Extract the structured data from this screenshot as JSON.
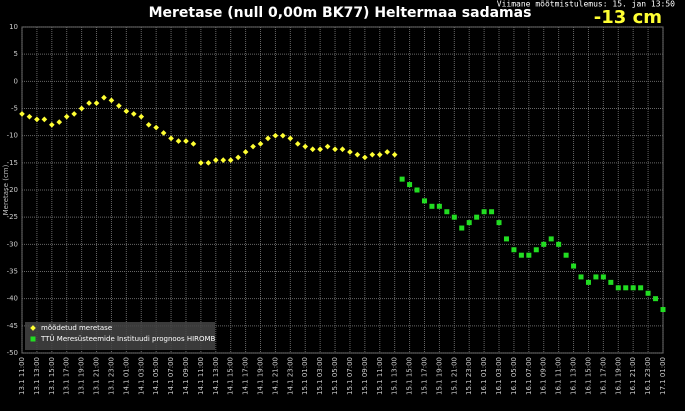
{
  "chart_data": {
    "type": "scatter",
    "title": "Meretase (null 0,00m BK77) Heltermaa sadamas",
    "subtitle": "Viimane mõõtmistulemus: 15. jan 13:50",
    "current_reading": "-13 cm",
    "y_label": "Meretase (cm)",
    "categories": [
      "13.1 11:00",
      null,
      "13.1 13:00",
      null,
      "13.1 15:00",
      null,
      "13.1 17:00",
      null,
      "13.1 19:00",
      null,
      "13.1 21:00",
      null,
      "13.1 23:00",
      null,
      "14.1 01:00",
      null,
      "14.1 03:00",
      null,
      "14.1 05:00",
      null,
      "14.1 07:00",
      null,
      "14.1 09:00",
      null,
      "14.1 11:00",
      null,
      "14.1 13:00",
      null,
      "14.1 15:00",
      null,
      "14.1 17:00",
      null,
      "14.1 19:00",
      null,
      "14.1 21:00",
      null,
      "14.1 23:00",
      null,
      "15.1 01:00",
      null,
      "15.1 03:00",
      null,
      "15.1 05:00",
      null,
      "15.1 07:00",
      null,
      "15.1 09:00",
      null,
      "15.1 11:00",
      null,
      "15.1 13:00",
      null,
      "15.1 15:00",
      null,
      "15.1 17:00",
      null,
      "15.1 19:00",
      null,
      "15.1 21:00",
      null,
      "15.1 23:00",
      null,
      "16.1 01:00",
      null,
      "16.1 03:00",
      null,
      "16.1 05:00",
      null,
      "16.1 07:00",
      null,
      "16.1 09:00",
      null,
      "16.1 11:00",
      null,
      "16.1 13:00",
      null,
      "16.1 15:00",
      null,
      "16.1 17:00",
      null,
      "16.1 19:00",
      null,
      "16.1 21:00",
      null,
      "16.1 23:00",
      null,
      "17.1 01:00"
    ],
    "series": [
      {
        "name": "mõõdetud meretase",
        "color": "#ffff33",
        "marker": "diamond",
        "values": [
          -6,
          -6.5,
          -7,
          -7,
          -8,
          -7.5,
          -6.5,
          -6,
          -5,
          -4,
          -4,
          -3,
          -3.5,
          -4.5,
          -5.5,
          -6,
          -6.5,
          -8,
          -8.5,
          -9.5,
          -10.5,
          -11,
          -11,
          -11.5,
          -15,
          -15,
          -14.5,
          -14.5,
          -14.5,
          -14,
          -13,
          -12,
          -11.5,
          -10.5,
          -10,
          -10,
          -10.5,
          -11.5,
          -12,
          -12.5,
          -12.5,
          -12,
          -12.5,
          -12.5,
          -13,
          -13.5,
          -14,
          -13.5,
          -13.5,
          -13,
          -13.5,
          null,
          null,
          null,
          null,
          null,
          null,
          null,
          null,
          null,
          null,
          null,
          null,
          null,
          null,
          null,
          null,
          null,
          null,
          null,
          null,
          null,
          null,
          null,
          null,
          null,
          null,
          null,
          null,
          null,
          null,
          null,
          null,
          null,
          null,
          null,
          null
        ]
      },
      {
        "name": "TTÜ Meresüsteemide Instituudi prognoos HIROMB",
        "color": "#22dd22",
        "marker": "square",
        "values": [
          null,
          null,
          null,
          null,
          null,
          null,
          null,
          null,
          null,
          null,
          null,
          null,
          null,
          null,
          null,
          null,
          null,
          null,
          null,
          null,
          null,
          null,
          null,
          null,
          null,
          null,
          null,
          null,
          null,
          null,
          null,
          null,
          null,
          null,
          null,
          null,
          null,
          null,
          null,
          null,
          null,
          null,
          null,
          null,
          null,
          null,
          null,
          null,
          null,
          null,
          null,
          -18,
          -19,
          -20,
          -22,
          -23,
          -23,
          -24,
          -25,
          -27,
          -26,
          -25,
          -24,
          -24,
          -26,
          -29,
          -31,
          -32,
          -32,
          -31,
          -30,
          -29,
          -30,
          -32,
          -34,
          -36,
          -37,
          -36,
          -36,
          -37,
          -38,
          -38,
          -38,
          -38,
          -39,
          -40,
          -42
        ]
      }
    ],
    "ylim": [
      -50,
      10
    ],
    "yticks": [
      10,
      5,
      0,
      -5,
      -10,
      -15,
      -20,
      -25,
      -30,
      -35,
      -40,
      -45,
      -50
    ],
    "grid": true,
    "legend": "lower left"
  }
}
